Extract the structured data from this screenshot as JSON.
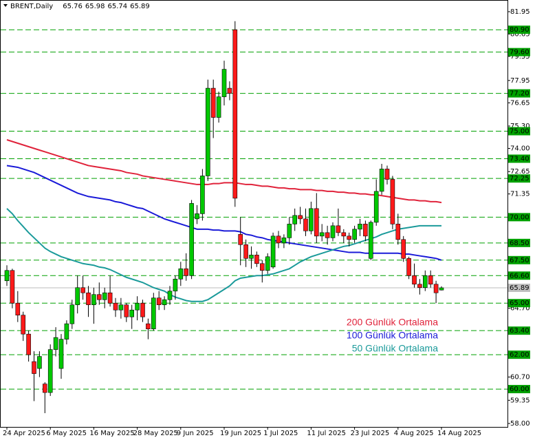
{
  "chart_data": {
    "type": "candlestick",
    "title": "BRENT,Daily",
    "header_values": [
      65.76,
      65.98,
      65.74,
      65.89
    ],
    "categories": [
      "24 Apr 2025",
      null,
      null,
      null,
      null,
      null,
      null,
      null,
      "6 May 2025",
      null,
      null,
      null,
      null,
      null,
      null,
      null,
      "16 May 2025",
      null,
      null,
      null,
      null,
      null,
      null,
      null,
      "28 May 2025",
      null,
      null,
      null,
      null,
      null,
      null,
      null,
      "9 Jun 2025",
      null,
      null,
      null,
      null,
      null,
      null,
      null,
      "19 Jun 2025",
      null,
      null,
      null,
      null,
      null,
      null,
      null,
      "1 Jul 2025",
      null,
      null,
      null,
      null,
      null,
      null,
      null,
      "11 Jul 2025",
      null,
      null,
      null,
      null,
      null,
      null,
      null,
      "23 Jul 2025",
      null,
      null,
      null,
      null,
      null,
      null,
      null,
      "4 Aug 2025",
      null,
      null,
      null,
      null,
      null,
      null,
      null,
      "14 Aug 2025"
    ],
    "open": [
      66.3,
      66.9,
      65.0,
      64.3,
      63.2,
      61.6,
      61.2,
      60.3,
      59.8,
      62.3,
      61.2,
      62.9,
      63.8,
      64.9,
      65.9,
      65.6,
      64.9,
      65.5,
      65.2,
      65.6,
      65.0,
      64.6,
      64.9,
      64.2,
      64.6,
      65.0,
      63.8,
      63.5,
      65.3,
      64.9,
      65.2,
      65.7,
      66.4,
      67.0,
      66.6,
      69.9,
      70.2,
      72.4,
      77.5,
      75.8,
      77.0,
      77.5,
      80.9,
      69.0,
      68.4,
      67.6,
      67.8,
      67.3,
      66.9,
      67.1,
      68.9,
      68.5,
      68.8,
      69.6,
      70.1,
      69.9,
      69.2,
      70.5,
      68.9,
      69.1,
      68.8,
      69.5,
      69.1,
      68.9,
      68.7,
      69.3,
      69.6,
      67.6,
      69.7,
      71.5,
      72.8,
      72.2,
      69.6,
      68.7,
      67.6,
      66.6,
      66.1,
      65.9,
      66.6,
      66.1,
      65.76
    ],
    "high": [
      67.2,
      67.0,
      65.7,
      64.5,
      63.4,
      62.2,
      62.2,
      60.4,
      62.6,
      63.6,
      63.2,
      64.0,
      65.2,
      66.6,
      66.6,
      66.0,
      65.9,
      66.2,
      65.9,
      66.6,
      65.3,
      65.3,
      65.0,
      64.9,
      65.4,
      65.2,
      64.1,
      65.6,
      65.7,
      65.4,
      66.0,
      66.6,
      67.4,
      67.9,
      71.0,
      70.7,
      72.8,
      78.0,
      78.0,
      77.3,
      79.1,
      77.9,
      81.4,
      70.0,
      68.7,
      68.3,
      68.0,
      67.5,
      67.9,
      69.1,
      69.2,
      69.0,
      70.0,
      70.5,
      70.6,
      70.5,
      70.9,
      71.4,
      69.6,
      69.5,
      69.7,
      70.5,
      69.3,
      69.1,
      69.5,
      69.9,
      69.8,
      69.8,
      72.2,
      73.1,
      73.0,
      72.4,
      70.2,
      68.9,
      67.7,
      67.3,
      66.4,
      66.9,
      66.9,
      66.3,
      65.98
    ],
    "low": [
      66.0,
      64.7,
      63.9,
      62.8,
      61.6,
      59.3,
      60.7,
      58.6,
      59.6,
      61.9,
      60.6,
      62.6,
      63.5,
      64.4,
      65.2,
      64.2,
      63.8,
      64.9,
      64.7,
      64.8,
      64.2,
      64.1,
      63.9,
      63.5,
      64.0,
      63.9,
      62.9,
      63.4,
      64.6,
      64.6,
      64.9,
      65.2,
      66.0,
      66.3,
      66.4,
      69.6,
      69.8,
      72.1,
      74.6,
      75.5,
      76.5,
      76.8,
      70.6,
      67.2,
      67.1,
      67.0,
      67.1,
      66.2,
      66.7,
      67.0,
      68.2,
      68.2,
      68.4,
      69.2,
      69.6,
      68.9,
      69.0,
      68.5,
      68.6,
      68.4,
      68.6,
      68.9,
      68.5,
      68.3,
      68.5,
      68.9,
      68.6,
      67.5,
      69.5,
      71.3,
      71.9,
      69.3,
      68.4,
      67.4,
      66.4,
      65.9,
      65.5,
      65.7,
      65.9,
      65.0,
      65.74
    ],
    "close": [
      66.9,
      65.0,
      64.3,
      63.2,
      62.0,
      60.9,
      61.9,
      59.8,
      62.3,
      63.0,
      62.9,
      63.8,
      64.9,
      65.9,
      65.6,
      64.9,
      65.5,
      65.2,
      65.6,
      65.0,
      64.6,
      64.9,
      64.2,
      64.6,
      65.0,
      64.2,
      63.5,
      65.3,
      64.9,
      65.2,
      65.7,
      66.4,
      67.0,
      66.6,
      70.8,
      70.2,
      72.4,
      77.5,
      75.8,
      77.0,
      78.6,
      77.2,
      71.1,
      68.4,
      67.6,
      67.8,
      67.3,
      66.9,
      67.7,
      68.9,
      68.5,
      68.8,
      69.6,
      70.1,
      69.9,
      69.2,
      70.5,
      68.9,
      69.1,
      68.8,
      69.5,
      69.1,
      68.9,
      68.7,
      69.3,
      69.6,
      68.9,
      69.7,
      71.5,
      72.8,
      72.2,
      69.6,
      68.7,
      67.6,
      66.6,
      66.1,
      65.9,
      66.6,
      66.1,
      65.6,
      65.89
    ],
    "up_color": "#00c800",
    "down_color": "#ff1a1a",
    "series": [
      {
        "name": "200 Günlük Ortalama",
        "color": "#e0223a",
        "values": [
          74.5,
          74.4,
          74.3,
          74.2,
          74.1,
          74.0,
          73.9,
          73.8,
          73.7,
          73.6,
          73.5,
          73.4,
          73.3,
          73.2,
          73.1,
          73.0,
          72.95,
          72.9,
          72.85,
          72.8,
          72.75,
          72.7,
          72.6,
          72.55,
          72.5,
          72.4,
          72.35,
          72.3,
          72.25,
          72.2,
          72.15,
          72.1,
          72.05,
          72.0,
          71.95,
          71.9,
          71.9,
          71.9,
          71.95,
          71.95,
          72.0,
          72.0,
          72.0,
          71.95,
          71.9,
          71.9,
          71.85,
          71.8,
          71.8,
          71.75,
          71.7,
          71.7,
          71.65,
          71.65,
          71.6,
          71.6,
          71.6,
          71.55,
          71.55,
          71.5,
          71.5,
          71.45,
          71.45,
          71.4,
          71.4,
          71.35,
          71.35,
          71.3,
          71.3,
          71.25,
          71.2,
          71.15,
          71.1,
          71.05,
          71.0,
          71.0,
          70.95,
          70.95,
          70.9,
          70.9,
          70.85
        ]
      },
      {
        "name": "100 Günlük Ortalama",
        "color": "#1a1ad8",
        "values": [
          73.0,
          72.95,
          72.9,
          72.8,
          72.7,
          72.6,
          72.45,
          72.3,
          72.15,
          72.0,
          71.85,
          71.7,
          71.55,
          71.4,
          71.3,
          71.2,
          71.15,
          71.1,
          71.05,
          71.0,
          70.9,
          70.85,
          70.75,
          70.65,
          70.55,
          70.5,
          70.35,
          70.2,
          70.05,
          69.9,
          69.8,
          69.7,
          69.6,
          69.5,
          69.4,
          69.3,
          69.3,
          69.3,
          69.25,
          69.25,
          69.2,
          69.2,
          69.2,
          69.15,
          69.0,
          68.95,
          68.85,
          68.8,
          68.7,
          68.65,
          68.6,
          68.55,
          68.5,
          68.45,
          68.4,
          68.35,
          68.3,
          68.25,
          68.2,
          68.15,
          68.1,
          68.05,
          68.0,
          67.95,
          67.95,
          67.95,
          67.9,
          67.9,
          67.9,
          67.9,
          67.9,
          67.9,
          67.9,
          67.85,
          67.85,
          67.8,
          67.75,
          67.7,
          67.65,
          67.6,
          67.5
        ]
      },
      {
        "name": "50 Günlük Ortalama",
        "color": "#1a9a9a",
        "values": [
          70.5,
          70.2,
          69.8,
          69.45,
          69.1,
          68.8,
          68.5,
          68.2,
          68.0,
          67.85,
          67.7,
          67.6,
          67.5,
          67.4,
          67.3,
          67.25,
          67.2,
          67.1,
          67.05,
          66.95,
          66.8,
          66.65,
          66.5,
          66.4,
          66.3,
          66.2,
          66.05,
          65.9,
          65.8,
          65.7,
          65.5,
          65.35,
          65.25,
          65.15,
          65.1,
          65.1,
          65.1,
          65.2,
          65.4,
          65.6,
          65.8,
          66.0,
          66.3,
          66.45,
          66.5,
          66.55,
          66.6,
          66.6,
          66.65,
          66.7,
          66.8,
          66.9,
          67.0,
          67.2,
          67.4,
          67.55,
          67.7,
          67.8,
          67.9,
          68.0,
          68.1,
          68.2,
          68.3,
          68.35,
          68.45,
          68.55,
          68.65,
          68.75,
          68.85,
          69.0,
          69.1,
          69.2,
          69.3,
          69.35,
          69.4,
          69.45,
          69.5,
          69.5,
          69.5,
          69.5,
          69.5
        ]
      }
    ],
    "ylim": [
      57.8,
      82.63
    ],
    "yticks": [
      {
        "value": 81.95,
        "label": "81.95"
      },
      {
        "value": 80.65,
        "label": "80.65"
      },
      {
        "value": 79.35,
        "label": "79.35"
      },
      {
        "value": 77.95,
        "label": "77.95"
      },
      {
        "value": 76.65,
        "label": "76.65"
      },
      {
        "value": 75.3,
        "label": "75.30"
      },
      {
        "value": 74.0,
        "label": "74.00"
      },
      {
        "value": 72.65,
        "label": "72.65"
      },
      {
        "value": 71.35,
        "label": "71.35"
      },
      {
        "value": 64.7,
        "label": "64.70"
      },
      {
        "value": 60.7,
        "label": "60.70"
      },
      {
        "value": 59.35,
        "label": "59.35"
      },
      {
        "value": 58.0,
        "label": "58.00"
      }
    ],
    "levels": [
      {
        "value": 80.9,
        "label": "80.90"
      },
      {
        "value": 79.6,
        "label": "79.60"
      },
      {
        "value": 77.2,
        "label": "77.20"
      },
      {
        "value": 75.0,
        "label": "75.00"
      },
      {
        "value": 73.4,
        "label": "73.40"
      },
      {
        "value": 72.25,
        "label": "72.25"
      },
      {
        "value": 70.0,
        "label": "70.00"
      },
      {
        "value": 68.5,
        "label": "68.50"
      },
      {
        "value": 67.5,
        "label": "67.50"
      },
      {
        "value": 66.6,
        "label": "66.60"
      },
      {
        "value": 65.0,
        "label": "65.00"
      },
      {
        "value": 63.4,
        "label": "63.40"
      },
      {
        "value": 62.0,
        "label": "62.00"
      },
      {
        "value": 60.0,
        "label": "60.00"
      }
    ],
    "level_color": "#00a000",
    "last_price": 65.89
  }
}
